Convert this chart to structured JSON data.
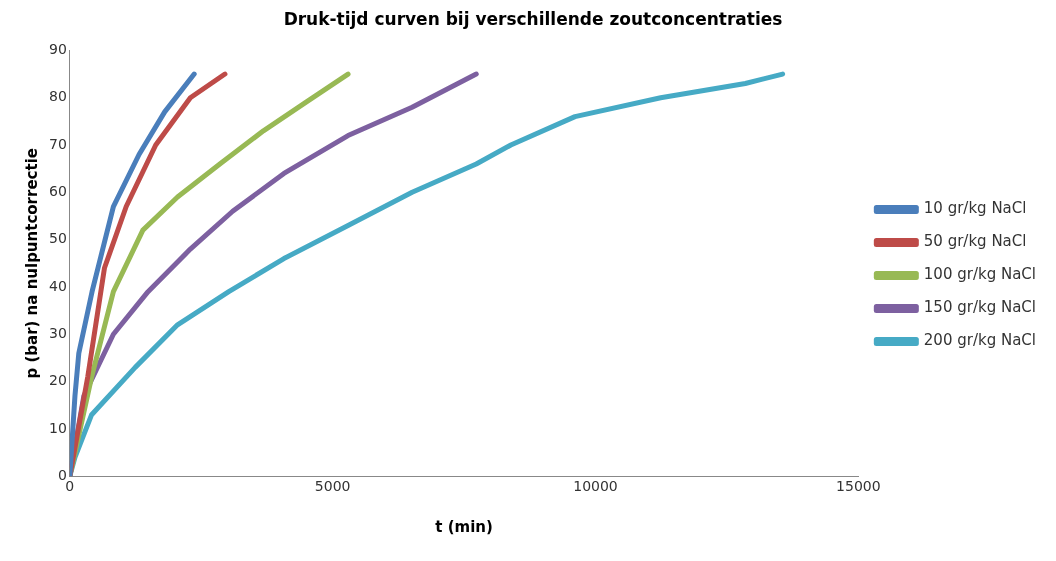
{
  "chart_data": {
    "type": "line",
    "title": "Druk-tijd curven bij verschillende zoutconcentraties",
    "xlabel": "t (min)",
    "ylabel": "p (bar) na nulpuntcorrectie",
    "xlim": [
      0,
      15000
    ],
    "xticks": [
      0,
      5000,
      10000,
      15000
    ],
    "ylim": [
      0,
      90
    ],
    "yticks": [
      0,
      10,
      20,
      30,
      40,
      50,
      60,
      70,
      80,
      90
    ],
    "grid": false,
    "legend": "right",
    "marker": "none",
    "line_style": "solid",
    "series": [
      {
        "name": "10 gr/kg NaCl",
        "color": "#4a7ebb",
        "x": [
          0,
          98,
          171,
          423,
          829,
          1317,
          1805,
          2366
        ],
        "values": [
          0,
          17,
          26,
          39,
          57,
          68,
          77,
          85
        ]
      },
      {
        "name": "50 gr/kg NaCl",
        "color": "#be4b48",
        "x": [
          0,
          341,
          659,
          1073,
          1634,
          2293,
          2951
        ],
        "values": [
          0,
          21,
          44,
          57,
          70,
          80,
          85
        ]
      },
      {
        "name": "100 gr/kg NaCl",
        "color": "#98b954",
        "x": [
          0,
          415,
          829,
          1390,
          2049,
          2854,
          3683,
          4488,
          5293
        ],
        "values": [
          0,
          21,
          39,
          52,
          59,
          66,
          73,
          79,
          85
        ]
      },
      {
        "name": "150 gr/kg NaCl",
        "color": "#7d60a0",
        "x": [
          0,
          268,
          829,
          1488,
          2293,
          3098,
          4073,
          5293,
          6512,
          7732
        ],
        "values": [
          0,
          17,
          30,
          39,
          48,
          56,
          64,
          72,
          78,
          85
        ]
      },
      {
        "name": "200 gr/kg NaCl",
        "color": "#46aac5",
        "x": [
          0,
          98,
          415,
          1244,
          2049,
          3024,
          4073,
          5293,
          6512,
          7732,
          8390,
          9610,
          11240,
          12850,
          13560
        ],
        "values": [
          0,
          4,
          13,
          23,
          32,
          39,
          46,
          53,
          60,
          66,
          70,
          76,
          80,
          83,
          85
        ]
      }
    ]
  }
}
